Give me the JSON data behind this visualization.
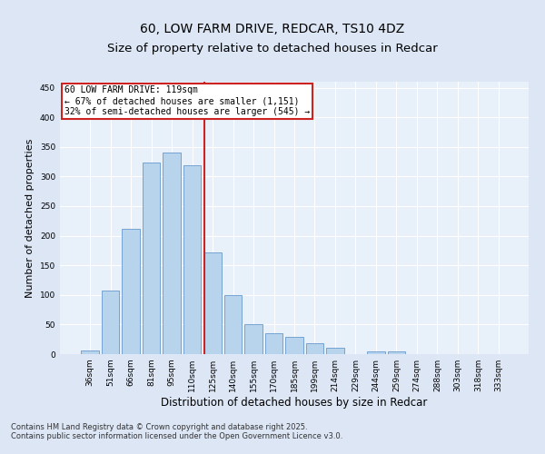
{
  "title_line1": "60, LOW FARM DRIVE, REDCAR, TS10 4DZ",
  "title_line2": "Size of property relative to detached houses in Redcar",
  "xlabel": "Distribution of detached houses by size in Redcar",
  "ylabel": "Number of detached properties",
  "categories": [
    "36sqm",
    "51sqm",
    "66sqm",
    "81sqm",
    "95sqm",
    "110sqm",
    "125sqm",
    "140sqm",
    "155sqm",
    "170sqm",
    "185sqm",
    "199sqm",
    "214sqm",
    "229sqm",
    "244sqm",
    "259sqm",
    "274sqm",
    "288sqm",
    "303sqm",
    "318sqm",
    "333sqm"
  ],
  "values": [
    6,
    107,
    211,
    324,
    340,
    319,
    171,
    99,
    51,
    36,
    29,
    18,
    11,
    0,
    4,
    5,
    0,
    0,
    0,
    0,
    0
  ],
  "bar_color": "#b8d4ec",
  "bar_edge_color": "#6699cc",
  "vline_color": "#cc2222",
  "vline_x_index": 4.6,
  "annotation_text_line1": "60 LOW FARM DRIVE: 119sqm",
  "annotation_text_line2": "← 67% of detached houses are smaller (1,151)",
  "annotation_text_line3": "32% of semi-detached houses are larger (545) →",
  "annotation_box_color": "#ffffff",
  "annotation_box_edge": "#cc2222",
  "ylim": [
    0,
    460
  ],
  "yticks": [
    0,
    50,
    100,
    150,
    200,
    250,
    300,
    350,
    400,
    450
  ],
  "footer1": "Contains HM Land Registry data © Crown copyright and database right 2025.",
  "footer2": "Contains public sector information licensed under the Open Government Licence v3.0.",
  "bg_color": "#dce6f5",
  "plot_bg_color": "#e8f0fa",
  "title_fontsize": 10,
  "ylabel_fontsize": 8,
  "xlabel_fontsize": 8.5,
  "tick_fontsize": 6.5,
  "footer_fontsize": 6,
  "annot_fontsize": 7
}
